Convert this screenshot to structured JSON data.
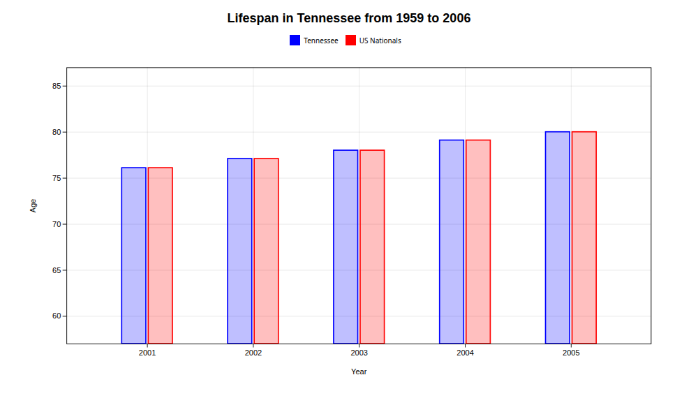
{
  "chart_data": {
    "type": "bar",
    "title": "Lifespan in Tennessee from 1959 to 2006",
    "xlabel": "Year",
    "ylabel": "Age",
    "categories": [
      "2001",
      "2002",
      "2003",
      "2004",
      "2005"
    ],
    "series": [
      {
        "name": "Tennessee",
        "color": "#0000ff",
        "values": [
          76.1,
          77.1,
          78.0,
          79.1,
          80.0
        ]
      },
      {
        "name": "US Nationals",
        "color": "#ff0000",
        "values": [
          76.1,
          77.1,
          78.0,
          79.1,
          80.0
        ]
      }
    ],
    "ylim": [
      57,
      87
    ],
    "yticks": [
      60,
      65,
      70,
      75,
      80,
      85
    ],
    "grid": true,
    "legend": "top"
  }
}
